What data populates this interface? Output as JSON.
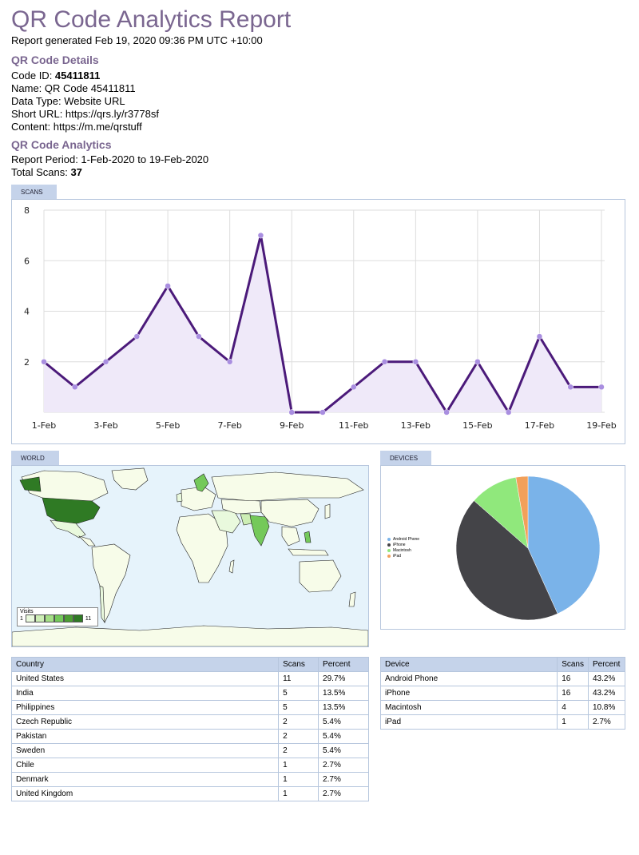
{
  "header": {
    "title": "QR Code Analytics Report",
    "generated": "Report generated Feb 19, 2020 09:36 PM UTC +10:00"
  },
  "details": {
    "heading": "QR Code Details",
    "code_id_label": "Code ID: ",
    "code_id": "45411811",
    "name": "Name: QR Code 45411811",
    "data_type": "Data Type: Website URL",
    "short_url": "Short URL: https://qrs.ly/r3778sf",
    "content": "Content: https://m.me/qrstuff"
  },
  "analytics": {
    "heading": "QR Code Analytics",
    "period": "Report Period: 1-Feb-2020 to 19-Feb-2020",
    "total_label": "Total Scans: ",
    "total": "37"
  },
  "tabs": {
    "scans": "SCANS",
    "world": "WORLD",
    "devices": "DEVICES"
  },
  "chart_data": [
    {
      "type": "area",
      "x": [
        "1-Feb",
        "2-Feb",
        "3-Feb",
        "4-Feb",
        "5-Feb",
        "6-Feb",
        "7-Feb",
        "8-Feb",
        "9-Feb",
        "10-Feb",
        "11-Feb",
        "12-Feb",
        "13-Feb",
        "14-Feb",
        "15-Feb",
        "16-Feb",
        "17-Feb",
        "18-Feb",
        "19-Feb"
      ],
      "x_tick_labels": [
        "1-Feb",
        "3-Feb",
        "5-Feb",
        "7-Feb",
        "9-Feb",
        "11-Feb",
        "13-Feb",
        "15-Feb",
        "17-Feb",
        "19-Feb"
      ],
      "values": [
        2,
        1,
        2,
        3,
        5,
        3,
        2,
        7,
        0,
        0,
        1,
        2,
        2,
        0,
        2,
        0,
        3,
        1,
        1
      ],
      "y_ticks": [
        "2",
        "4",
        "6",
        "8"
      ],
      "ylim": [
        0,
        8
      ],
      "grid": true,
      "line_color": "#4b1a7a",
      "fill_color": "#efe9f9",
      "point_color": "#a98ee0"
    },
    {
      "type": "pie",
      "categories": [
        "Android Phone",
        "iPhone",
        "Macintosh",
        "iPad"
      ],
      "values": [
        16,
        16,
        4,
        1
      ],
      "colors": [
        "#7ab3e9",
        "#444448",
        "#90e87c",
        "#f2a05a"
      ],
      "legend_position": "left"
    }
  ],
  "map": {
    "legend_title": "Visits",
    "legend_min": "1",
    "legend_max": "11",
    "legend_colors": [
      "#e9f9dd",
      "#cdeeb5",
      "#a5df86",
      "#74c95a",
      "#4c9e33",
      "#2f7a24"
    ]
  },
  "countries_table": {
    "headers": [
      "Country",
      "Scans",
      "Percent"
    ],
    "rows": [
      [
        "United States",
        "11",
        "29.7%"
      ],
      [
        "India",
        "5",
        "13.5%"
      ],
      [
        "Philippines",
        "5",
        "13.5%"
      ],
      [
        "Czech Republic",
        "2",
        "5.4%"
      ],
      [
        "Pakistan",
        "2",
        "5.4%"
      ],
      [
        "Sweden",
        "2",
        "5.4%"
      ],
      [
        "Chile",
        "1",
        "2.7%"
      ],
      [
        "Denmark",
        "1",
        "2.7%"
      ],
      [
        "United Kingdom",
        "1",
        "2.7%"
      ]
    ]
  },
  "devices_table": {
    "headers": [
      "Device",
      "Scans",
      "Percent"
    ],
    "rows": [
      [
        "Android Phone",
        "16",
        "43.2%"
      ],
      [
        "iPhone",
        "16",
        "43.2%"
      ],
      [
        "Macintosh",
        "4",
        "10.8%"
      ],
      [
        "iPad",
        "1",
        "2.7%"
      ]
    ]
  }
}
